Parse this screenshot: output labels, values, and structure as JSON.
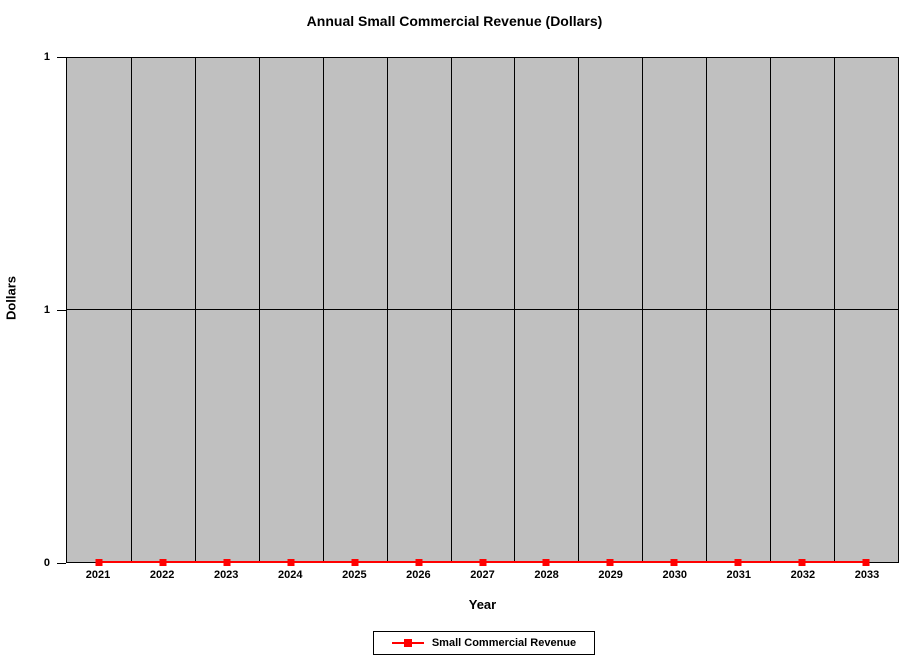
{
  "chart_data": {
    "type": "line",
    "title": "Annual Small Commercial Revenue (Dollars)",
    "xlabel": "Year",
    "ylabel": "Dollars",
    "categories": [
      "2021",
      "2022",
      "2023",
      "2024",
      "2025",
      "2026",
      "2027",
      "2028",
      "2029",
      "2030",
      "2031",
      "2032",
      "2033"
    ],
    "series": [
      {
        "name": "Small Commercial Revenue",
        "color": "#ff0000",
        "marker": "square",
        "values": [
          0,
          0,
          0,
          0,
          0,
          0,
          0,
          0,
          0,
          0,
          0,
          0,
          0
        ]
      }
    ],
    "ylim": [
      0,
      1
    ],
    "yticks": [
      {
        "pos": 0,
        "label": "0"
      },
      {
        "pos": 0.5,
        "label": "1"
      },
      {
        "pos": 1,
        "label": "1"
      }
    ],
    "plot_background": "#c0c0c0",
    "grid": "vertical-category-boundaries-and-mid-horizontal",
    "legend_position": "bottom-center",
    "legend_entries": [
      "Small Commercial Revenue"
    ]
  }
}
